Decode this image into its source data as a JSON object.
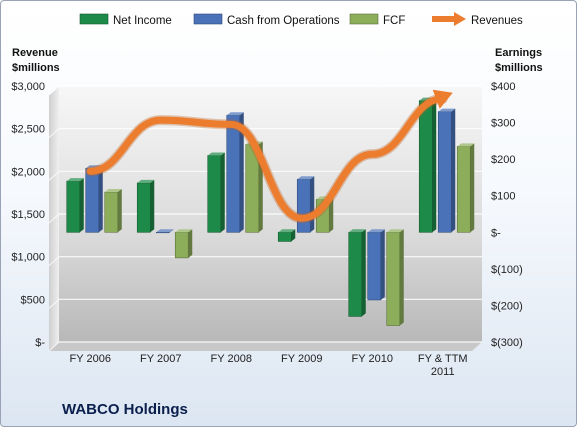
{
  "chart_data": {
    "type": "bar",
    "title": "WABCO Holdings",
    "categories": [
      "FY 2006",
      "FY 2007",
      "FY 2008",
      "FY 2009",
      "FY 2010",
      "FY & TTM 2011"
    ],
    "left_axis": {
      "label_lines": [
        "Revenue",
        "$millions"
      ],
      "ticks": [
        0,
        500,
        1000,
        1500,
        2000,
        2500,
        3000
      ],
      "tick_labels": [
        "$-",
        "$500",
        "$1,000",
        "$1,500",
        "$2,000",
        "$2,500",
        "$3,000"
      ],
      "range": [
        0,
        3000
      ]
    },
    "right_axis": {
      "label_lines": [
        "Earnings",
        "$millions"
      ],
      "ticks": [
        -300,
        -200,
        -100,
        0,
        100,
        200,
        300,
        400
      ],
      "tick_labels": [
        "$(300)",
        "$(200)",
        "$(100)",
        "$-",
        "$100",
        "$200",
        "$300",
        "$400"
      ],
      "range": [
        -300,
        400
      ]
    },
    "series": [
      {
        "name": "Net Income",
        "type": "bar",
        "axis": "right",
        "color": "#1e8a49",
        "values": [
          140,
          135,
          210,
          -25,
          -230,
          360
        ]
      },
      {
        "name": "Cash from Operations",
        "type": "bar",
        "axis": "right",
        "color": "#4a72b8",
        "values": [
          175,
          0,
          320,
          145,
          -185,
          330
        ]
      },
      {
        "name": "FCF",
        "type": "bar",
        "axis": "right",
        "color": "#8cad5a",
        "values": [
          110,
          -70,
          240,
          90,
          -255,
          235
        ]
      },
      {
        "name": "Revenues",
        "type": "line",
        "axis": "left",
        "color": "#ec7c2e",
        "values": [
          2000,
          2600,
          2550,
          1450,
          2200,
          2850
        ]
      }
    ],
    "legend_position": "top",
    "grid": true
  }
}
